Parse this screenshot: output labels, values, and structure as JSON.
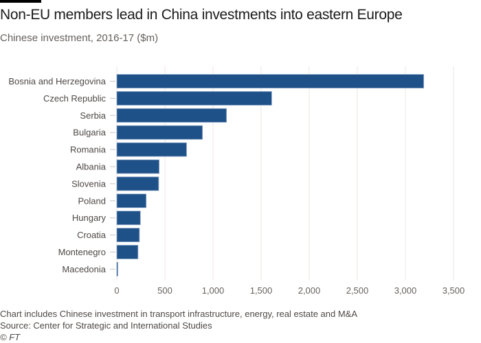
{
  "header": {
    "title": "Non-EU members lead in China investments into eastern Europe",
    "subtitle": "Chinese investment, 2016-17 ($m)"
  },
  "footer": {
    "note": "Chart includes Chinese investment in transport infrastructure, energy, real estate and M&A",
    "source": "Source: Center for Strategic and International Studies",
    "copyright": "© FT"
  },
  "colors": {
    "bar": "#1f5189",
    "bar_edge": "#8fa8c8",
    "grid": "#ede6e2",
    "tick_label": "#66605c",
    "category_label": "#4d4845"
  },
  "chart_data": {
    "type": "bar",
    "orientation": "horizontal",
    "title": "Non-EU members lead in China investments into eastern Europe",
    "subtitle": "Chinese investment, 2016-17 ($m)",
    "xlabel": "",
    "ylabel": "",
    "categories": [
      "Bosnia and Herzegovina",
      "Czech Republic",
      "Serbia",
      "Bulgaria",
      "Romania",
      "Albania",
      "Slovenia",
      "Poland",
      "Hungary",
      "Croatia",
      "Montenegro",
      "Macedonia"
    ],
    "values": [
      3190,
      1610,
      1140,
      890,
      725,
      440,
      435,
      305,
      245,
      235,
      220,
      10
    ],
    "xlim": [
      0,
      3500
    ],
    "xticks": [
      0,
      500,
      1000,
      1500,
      2000,
      2500,
      3000,
      3500
    ],
    "xtick_labels": [
      "0",
      "500",
      "1,000",
      "1,500",
      "2,000",
      "2,500",
      "3,000",
      "3,500"
    ],
    "grid": true,
    "legend": "none"
  }
}
